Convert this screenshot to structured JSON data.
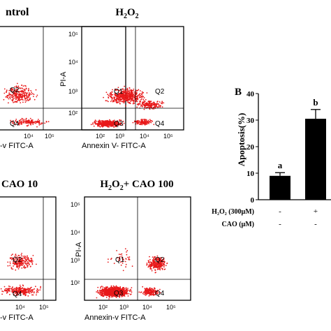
{
  "figure": {
    "panel_letter": "B"
  },
  "flow_panels": [
    {
      "title_html": "Control",
      "title_visible": "ntrol",
      "x_axis_label": "Annexin-v FITC-A",
      "x_axis_label_visible": "-v FITC-A",
      "y_axis_label": "",
      "ticks": [
        "10⁴",
        "10⁵"
      ],
      "y_ticks": [],
      "quadrants": {
        "q1": "",
        "q2": "Q2",
        "q3": "",
        "q4": "Q4"
      }
    },
    {
      "title_parts": {
        "base": "H",
        "sub": "2",
        "tail": "O",
        "sub2": "2",
        "rest": ""
      },
      "x_axis_label": "Annexin V- FITC-A",
      "y_axis_label": "PI-A",
      "x_ticks": [
        "10²",
        "10³",
        "10⁴",
        "10⁵"
      ],
      "y_ticks": [
        "10²",
        "10³",
        "10⁴",
        "10⁵"
      ],
      "quadrants": {
        "q1": "Q1",
        "q2": "Q2",
        "q3": "Q3",
        "q4": "Q4"
      }
    },
    {
      "title_visible": "CAO 10",
      "x_axis_label_visible": "-v FITC-A",
      "ticks": [
        "10⁴",
        "10⁵"
      ],
      "quadrants": {
        "q1": "",
        "q2": "Q2",
        "q3": "",
        "q4": "Q4"
      }
    },
    {
      "title_parts": {
        "base": "H",
        "sub": "2",
        "tail": "O",
        "sub2": "2",
        "rest": "+ CAO 100"
      },
      "x_axis_label": "Annexin-v FITC-A",
      "y_axis_label": "PI-A",
      "x_ticks": [
        "10²",
        "10³",
        "10⁴",
        "10⁵"
      ],
      "y_ticks": [
        "10²",
        "10³",
        "10⁴",
        "10⁵"
      ],
      "quadrants": {
        "q1": "Q1",
        "q2": "Q2",
        "q3": "Q3",
        "q4": "Q4"
      }
    }
  ],
  "chart_data": {
    "type": "bar",
    "ylabel": "Apoptosis(%)",
    "ylim": [
      0,
      40
    ],
    "yticks": [
      0,
      10,
      20,
      30,
      40
    ],
    "categories": [
      "a",
      "b"
    ],
    "values": [
      9,
      30.5
    ],
    "errors": [
      1.2,
      3.5
    ],
    "significance_letters": [
      "a",
      "b"
    ],
    "treatment_rows": [
      {
        "label_html": "H₂O₂ (300μM)",
        "values": [
          "-",
          "+"
        ]
      },
      {
        "label_html": "CAO (μM)",
        "values": [
          "-",
          "-"
        ]
      }
    ],
    "bar_color": "#000000"
  },
  "colors": {
    "dots": "#e8191a",
    "axis": "#000000",
    "gate": "#000000"
  }
}
